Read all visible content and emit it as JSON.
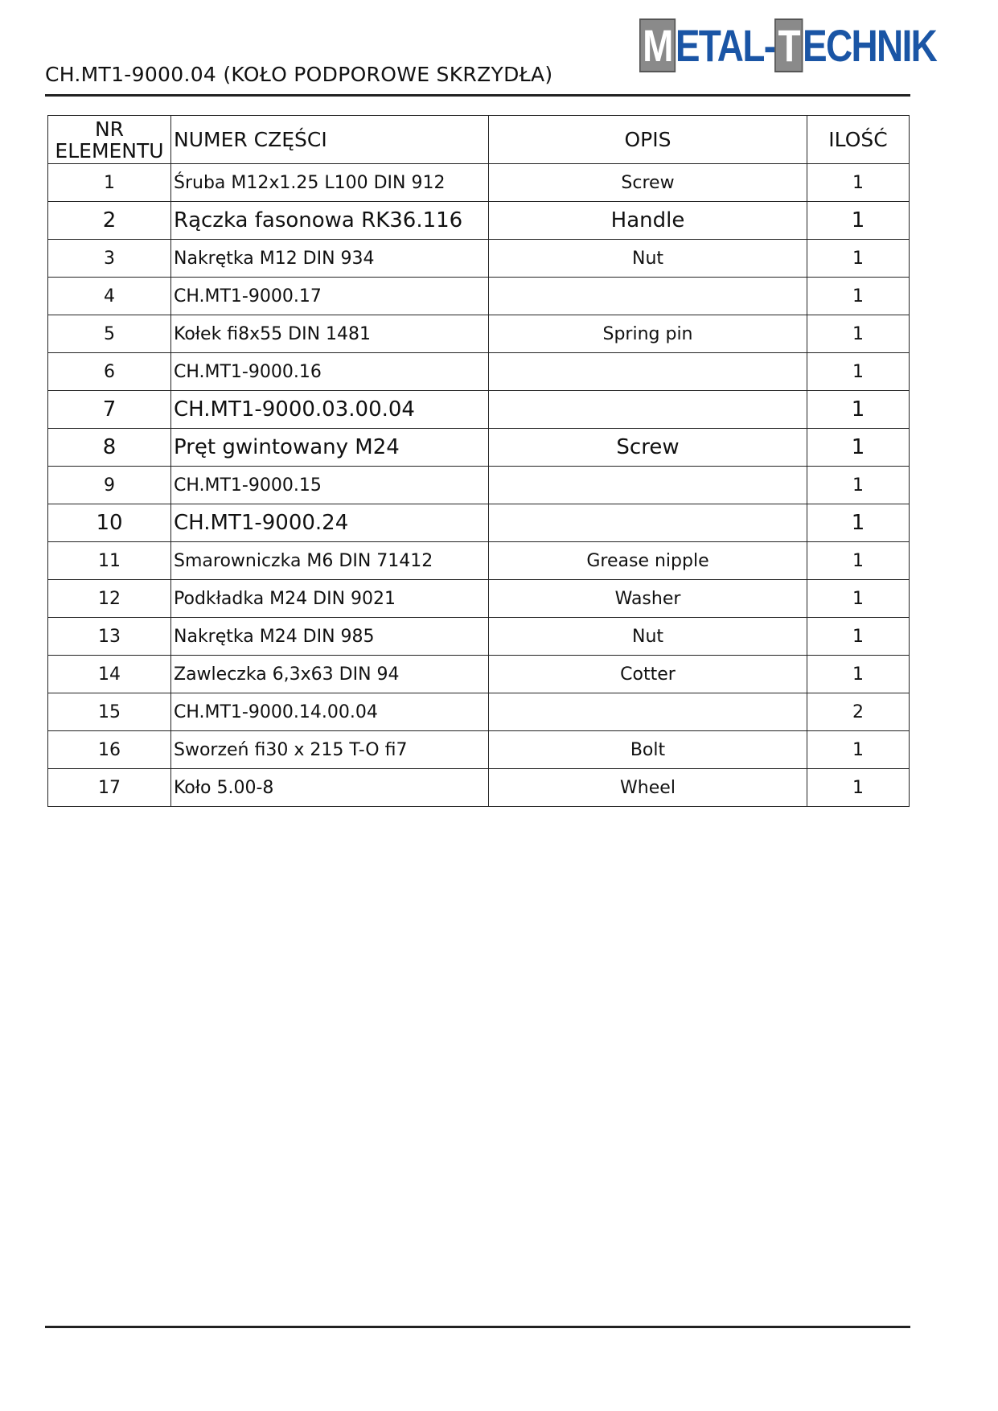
{
  "header": {
    "title": "CH.MT1-9000.04 (KOŁO PODPOROWE SKRZYDŁA)",
    "logo": [
      "M",
      "ETAL-",
      "T",
      "ECHNIK"
    ]
  },
  "table": {
    "columns": [
      "NR ELEMENTU",
      "NUMER CZĘŚCI",
      "OPIS",
      "ILOŚĆ"
    ],
    "rows": [
      [
        1,
        "Śruba M12x1.25 L100 DIN 912",
        "Screw",
        1
      ],
      [
        2,
        "Rączka fasonowa RK36.116",
        "Handle",
        1
      ],
      [
        3,
        "Nakrętka M12 DIN 934",
        "Nut",
        1
      ],
      [
        4,
        "CH.MT1-9000.17",
        null,
        1
      ],
      [
        5,
        "Kołek fi8x55 DIN 1481",
        "Spring pin",
        1
      ],
      [
        6,
        "CH.MT1-9000.16",
        null,
        1
      ],
      [
        7,
        "CH.MT1-9000.03.00.04",
        null,
        1
      ],
      [
        8,
        "Pręt gwintowany M24",
        "Screw",
        1
      ],
      [
        9,
        "CH.MT1-9000.15",
        null,
        1
      ],
      [
        10,
        "CH.MT1-9000.24",
        null,
        1
      ],
      [
        11,
        "Smarowniczka M6 DIN 71412",
        "Grease nipple",
        1
      ],
      [
        12,
        "Podkładka M24 DIN 9021",
        "Washer",
        1
      ],
      [
        13,
        "Nakrętka M24 DIN 985",
        "Nut",
        1
      ],
      [
        14,
        "Zawleczka 6,3x63 DIN 94",
        "Cotter",
        1
      ],
      [
        15,
        "CH.MT1-9000.14.00.04",
        null,
        2
      ],
      [
        16,
        "Sworzeń fi30 x 215 T-O fi7",
        "Bolt",
        1
      ],
      [
        17,
        "Koło 5.00-8",
        "Wheel",
        1
      ]
    ]
  }
}
